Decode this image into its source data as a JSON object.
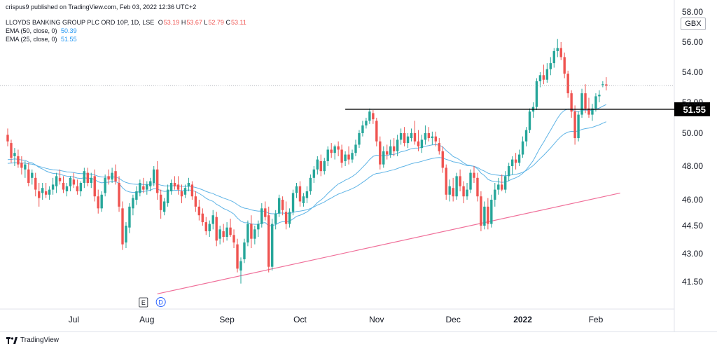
{
  "header": {
    "top_line": "crispus9 published on TradingView.com, Feb 03, 2022 12:36 UTC+2",
    "symbol": "LLOYDS BANKING GROUP PLC ORD 10P, 1D, LSE",
    "o_label": "O",
    "o_value": "53.19",
    "h_label": "H",
    "h_value": "53.67",
    "l_label": "L",
    "l_value": "52.79",
    "c_label": "C",
    "c_value": "53.11",
    "ema50_label": "EMA (50, close, 0)",
    "ema50_value": "50.39",
    "ema25_label": "EMA (25, close, 0)",
    "ema25_value": "51.55"
  },
  "currency": "GBX",
  "footer": {
    "logo_text": "TradingView"
  },
  "events": {
    "earnings_marker": "E",
    "dividend_marker": "D"
  },
  "colors": {
    "up": "#26a69a",
    "down": "#ef5350",
    "ema": "#5fb4e6",
    "trendline": "#f0709a",
    "level": "#000000"
  },
  "chart_data": {
    "type": "candlestick",
    "y_ticks": [
      "41.50",
      "43.00",
      "44.50",
      "46.00",
      "48.00",
      "50.00",
      "52.00",
      "54.00",
      "56.00",
      "58.00"
    ],
    "x_ticks": [
      {
        "label": "Jul",
        "bar": 19,
        "bold": false
      },
      {
        "label": "Aug",
        "bar": 40,
        "bold": false
      },
      {
        "label": "Sep",
        "bar": 63,
        "bold": false
      },
      {
        "label": "Oct",
        "bar": 84,
        "bold": false
      },
      {
        "label": "Nov",
        "bar": 106,
        "bold": false
      },
      {
        "label": "Dec",
        "bar": 128,
        "bold": false
      },
      {
        "label": "2022",
        "bar": 148,
        "bold": true
      },
      {
        "label": "Feb",
        "bar": 169,
        "bold": false
      }
    ],
    "last_price": 53.11,
    "horizontal_level": {
      "value": 51.55,
      "label": "51.55",
      "from_bar": 97
    },
    "trendline": {
      "from": [
        43,
        40.85
      ],
      "to": [
        176,
        46.4
      ]
    },
    "marker_bars": {
      "earnings": 39,
      "dividend": 44
    },
    "candles": [
      [
        49.9,
        50.3,
        49.2,
        49.5
      ],
      [
        49.4,
        49.6,
        48.2,
        48.5
      ],
      [
        48.6,
        49.1,
        48.0,
        48.8
      ],
      [
        48.6,
        49.0,
        47.9,
        48.1
      ],
      [
        48.2,
        48.6,
        47.5,
        47.9
      ],
      [
        47.8,
        48.3,
        47.3,
        48.1
      ],
      [
        47.8,
        48.2,
        46.8,
        47.0
      ],
      [
        47.3,
        47.8,
        46.9,
        47.6
      ],
      [
        47.3,
        47.6,
        46.2,
        46.6
      ],
      [
        46.5,
        47.0,
        45.6,
        46.1
      ],
      [
        46.4,
        47.0,
        46.0,
        46.7
      ],
      [
        46.5,
        47.0,
        46.1,
        46.3
      ],
      [
        46.3,
        46.8,
        46.0,
        46.6
      ],
      [
        46.6,
        47.3,
        46.3,
        46.9
      ],
      [
        46.8,
        47.6,
        46.4,
        47.4
      ],
      [
        47.3,
        47.8,
        46.9,
        47.1
      ],
      [
        47.0,
        47.4,
        46.4,
        46.6
      ],
      [
        46.5,
        47.0,
        46.2,
        46.8
      ],
      [
        46.8,
        47.4,
        46.5,
        47.3
      ],
      [
        47.2,
        47.6,
        46.7,
        46.9
      ],
      [
        46.8,
        47.2,
        46.3,
        46.5
      ],
      [
        46.5,
        47.1,
        46.2,
        47.0
      ],
      [
        47.0,
        47.9,
        46.7,
        47.7
      ],
      [
        47.6,
        47.9,
        46.8,
        47.0
      ],
      [
        47.0,
        47.6,
        46.7,
        47.3
      ],
      [
        47.4,
        47.8,
        45.9,
        46.2
      ],
      [
        46.2,
        46.6,
        45.2,
        45.5
      ],
      [
        45.5,
        46.5,
        45.3,
        46.3
      ],
      [
        46.4,
        47.5,
        46.2,
        47.3
      ],
      [
        47.4,
        47.8,
        46.9,
        47.2
      ],
      [
        47.2,
        47.9,
        47.0,
        47.6
      ],
      [
        47.7,
        48.1,
        46.9,
        47.1
      ],
      [
        47.0,
        47.4,
        45.3,
        45.6
      ],
      [
        45.5,
        45.9,
        43.2,
        43.5
      ],
      [
        43.6,
        44.7,
        43.3,
        44.5
      ],
      [
        44.4,
        45.8,
        44.1,
        45.6
      ],
      [
        45.5,
        46.3,
        45.1,
        46.1
      ],
      [
        46.0,
        46.8,
        45.7,
        46.5
      ],
      [
        46.4,
        47.2,
        46.2,
        47.0
      ],
      [
        46.8,
        47.3,
        46.4,
        46.6
      ],
      [
        46.6,
        47.1,
        46.3,
        46.9
      ],
      [
        46.8,
        47.3,
        46.5,
        47.1
      ],
      [
        47.0,
        48.0,
        46.8,
        47.8
      ],
      [
        47.8,
        48.3,
        46.0,
        46.4
      ],
      [
        46.3,
        46.6,
        44.9,
        45.4
      ],
      [
        45.3,
        46.1,
        45.1,
        45.9
      ],
      [
        45.8,
        46.9,
        45.6,
        46.6
      ],
      [
        46.5,
        47.2,
        46.3,
        47.0
      ],
      [
        47.0,
        47.4,
        46.6,
        46.8
      ],
      [
        46.9,
        47.4,
        46.3,
        46.6
      ],
      [
        46.5,
        46.9,
        45.8,
        46.2
      ],
      [
        46.3,
        46.9,
        46.1,
        46.7
      ],
      [
        46.8,
        47.3,
        46.5,
        47.0
      ],
      [
        46.9,
        47.1,
        46.0,
        46.2
      ],
      [
        46.2,
        46.5,
        45.3,
        45.6
      ],
      [
        45.6,
        46.0,
        44.8,
        45.1
      ],
      [
        45.2,
        45.5,
        44.5,
        44.7
      ],
      [
        44.7,
        45.0,
        44.0,
        44.2
      ],
      [
        44.2,
        44.8,
        43.9,
        44.6
      ],
      [
        44.6,
        45.4,
        44.3,
        45.1
      ],
      [
        45.0,
        45.3,
        43.4,
        43.7
      ],
      [
        43.8,
        44.5,
        43.5,
        44.3
      ],
      [
        44.2,
        44.6,
        43.6,
        43.9
      ],
      [
        43.9,
        44.7,
        43.7,
        44.4
      ],
      [
        44.4,
        44.9,
        43.9,
        44.0
      ],
      [
        44.0,
        44.3,
        43.3,
        43.6
      ],
      [
        43.5,
        43.8,
        42.0,
        42.2
      ],
      [
        42.1,
        42.8,
        41.4,
        42.6
      ],
      [
        42.7,
        43.8,
        42.5,
        43.6
      ],
      [
        43.6,
        44.8,
        43.4,
        44.6
      ],
      [
        44.6,
        45.1,
        43.3,
        43.8
      ],
      [
        43.8,
        44.5,
        43.5,
        44.3
      ],
      [
        44.3,
        44.8,
        43.9,
        44.6
      ],
      [
        44.6,
        45.8,
        44.4,
        45.5
      ],
      [
        45.5,
        45.9,
        44.8,
        45.0
      ],
      [
        45.1,
        45.6,
        42.0,
        42.3
      ],
      [
        42.3,
        44.9,
        42.1,
        44.6
      ],
      [
        44.6,
        45.4,
        44.3,
        45.2
      ],
      [
        45.2,
        46.3,
        45.0,
        46.1
      ],
      [
        46.0,
        46.2,
        45.1,
        45.4
      ],
      [
        45.3,
        45.9,
        44.3,
        44.6
      ],
      [
        44.6,
        45.5,
        44.4,
        45.3
      ],
      [
        45.3,
        46.6,
        45.1,
        46.4
      ],
      [
        46.4,
        47.0,
        46.1,
        46.8
      ],
      [
        46.8,
        47.1,
        45.6,
        45.9
      ],
      [
        45.8,
        46.4,
        45.6,
        46.2
      ],
      [
        46.1,
        46.8,
        45.8,
        46.5
      ],
      [
        46.5,
        47.5,
        46.3,
        47.3
      ],
      [
        47.3,
        48.0,
        47.0,
        47.8
      ],
      [
        47.8,
        48.6,
        47.5,
        48.4
      ],
      [
        48.3,
        48.7,
        47.4,
        47.7
      ],
      [
        47.7,
        48.5,
        47.5,
        48.3
      ],
      [
        48.3,
        49.2,
        48.0,
        49.0
      ],
      [
        49.0,
        49.4,
        48.5,
        48.8
      ],
      [
        48.8,
        49.3,
        48.4,
        49.2
      ],
      [
        49.2,
        49.5,
        48.6,
        49.0
      ],
      [
        49.0,
        49.3,
        47.9,
        48.2
      ],
      [
        48.3,
        48.9,
        48.0,
        48.7
      ],
      [
        48.7,
        49.2,
        48.1,
        48.4
      ],
      [
        48.4,
        49.0,
        48.2,
        48.8
      ],
      [
        48.8,
        49.6,
        48.6,
        49.3
      ],
      [
        49.3,
        50.2,
        49.1,
        50.0
      ],
      [
        50.0,
        50.8,
        49.8,
        50.5
      ],
      [
        50.5,
        51.0,
        50.3,
        50.8
      ],
      [
        50.8,
        51.6,
        50.6,
        51.4
      ],
      [
        51.3,
        51.5,
        50.6,
        50.9
      ],
      [
        50.8,
        51.0,
        49.2,
        49.5
      ],
      [
        49.5,
        49.8,
        47.8,
        48.1
      ],
      [
        48.1,
        49.2,
        47.9,
        48.9
      ],
      [
        48.9,
        49.3,
        48.4,
        48.7
      ],
      [
        48.7,
        49.6,
        48.5,
        49.2
      ],
      [
        49.2,
        49.7,
        48.6,
        48.9
      ],
      [
        48.9,
        49.9,
        48.6,
        49.6
      ],
      [
        49.6,
        50.3,
        49.3,
        50.0
      ],
      [
        50.0,
        50.4,
        49.2,
        49.4
      ],
      [
        49.4,
        50.0,
        49.1,
        49.8
      ],
      [
        49.7,
        50.3,
        49.5,
        50.0
      ],
      [
        50.0,
        50.8,
        49.3,
        49.5
      ],
      [
        49.5,
        50.2,
        48.9,
        49.2
      ],
      [
        49.1,
        49.9,
        48.8,
        49.6
      ],
      [
        49.6,
        50.5,
        49.3,
        50.0
      ],
      [
        50.0,
        50.4,
        49.5,
        49.7
      ],
      [
        49.7,
        50.1,
        49.3,
        49.8
      ],
      [
        49.8,
        50.1,
        49.2,
        49.5
      ],
      [
        49.4,
        49.7,
        48.7,
        48.9
      ],
      [
        48.9,
        49.2,
        47.6,
        47.9
      ],
      [
        47.9,
        48.1,
        46.0,
        46.3
      ],
      [
        46.3,
        47.2,
        45.9,
        46.8
      ],
      [
        46.7,
        47.3,
        45.9,
        46.2
      ],
      [
        46.2,
        47.6,
        46.0,
        47.4
      ],
      [
        47.4,
        47.8,
        46.5,
        46.8
      ],
      [
        46.8,
        47.1,
        45.8,
        46.2
      ],
      [
        46.2,
        47.0,
        46.0,
        46.6
      ],
      [
        46.6,
        47.8,
        46.4,
        47.6
      ],
      [
        47.6,
        48.0,
        47.0,
        47.3
      ],
      [
        47.3,
        47.6,
        45.9,
        46.2
      ],
      [
        46.2,
        46.5,
        44.2,
        44.5
      ],
      [
        44.5,
        45.9,
        44.3,
        45.6
      ],
      [
        45.6,
        46.1,
        44.3,
        44.6
      ],
      [
        44.6,
        46.3,
        44.4,
        46.0
      ],
      [
        46.0,
        47.0,
        45.6,
        46.6
      ],
      [
        46.6,
        47.3,
        46.3,
        46.9
      ],
      [
        46.9,
        47.5,
        46.5,
        46.6
      ],
      [
        46.6,
        47.7,
        46.4,
        47.4
      ],
      [
        47.4,
        48.2,
        47.1,
        48.0
      ],
      [
        48.0,
        48.6,
        47.5,
        48.4
      ],
      [
        48.4,
        48.8,
        47.8,
        48.2
      ],
      [
        48.2,
        49.0,
        48.0,
        48.7
      ],
      [
        48.7,
        49.8,
        48.5,
        49.5
      ],
      [
        49.5,
        50.4,
        49.2,
        50.2
      ],
      [
        50.2,
        51.6,
        50.0,
        51.4
      ],
      [
        51.4,
        52.0,
        51.0,
        51.7
      ],
      [
        51.7,
        53.6,
        51.5,
        53.4
      ],
      [
        53.4,
        54.0,
        53.0,
        53.8
      ],
      [
        53.8,
        54.5,
        53.2,
        53.5
      ],
      [
        53.5,
        54.6,
        53.3,
        54.2
      ],
      [
        54.2,
        55.0,
        53.8,
        54.6
      ],
      [
        54.6,
        55.6,
        54.3,
        55.4
      ],
      [
        55.4,
        56.2,
        55.0,
        55.6
      ],
      [
        55.6,
        56.0,
        54.8,
        55.0
      ],
      [
        55.0,
        55.3,
        53.6,
        53.9
      ],
      [
        53.9,
        54.1,
        52.3,
        52.6
      ],
      [
        52.6,
        52.8,
        51.0,
        51.4
      ],
      [
        51.4,
        51.8,
        49.3,
        49.7
      ],
      [
        49.7,
        51.4,
        49.5,
        51.2
      ],
      [
        51.2,
        52.9,
        51.0,
        52.6
      ],
      [
        52.6,
        53.2,
        51.3,
        51.6
      ],
      [
        51.6,
        52.3,
        51.0,
        51.2
      ],
      [
        51.2,
        51.9,
        50.8,
        51.6
      ],
      [
        51.6,
        52.6,
        51.4,
        52.4
      ],
      [
        52.4,
        52.8,
        52.0,
        52.5
      ],
      [
        53.2,
        53.4,
        53.0,
        53.2
      ],
      [
        53.19,
        53.67,
        52.79,
        53.11
      ]
    ]
  }
}
